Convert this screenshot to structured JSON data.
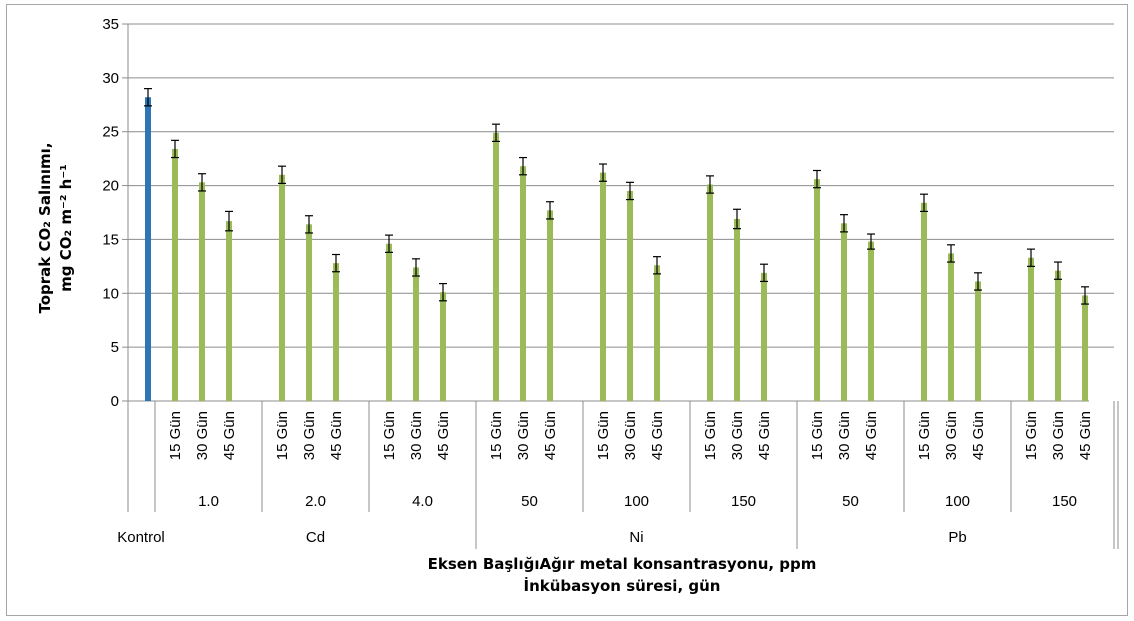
{
  "chart_data": {
    "type": "bar",
    "ylabel": {
      "line1": "Toprak CO₂ Salınımı,",
      "line2": "mg CO₂ m⁻² h⁻¹"
    },
    "xlabel": {
      "line1": "Eksen BaşlığıAğır metal konsantrasyonu, ppm",
      "line2": "İnkübasyon süresi, gün"
    },
    "ylim": [
      0,
      35
    ],
    "yticks": [
      0,
      5,
      10,
      15,
      20,
      25,
      30,
      35
    ],
    "grid": true,
    "colors": {
      "control": "#2e75b6",
      "treatment": "#9bbb59",
      "error_bar": "#000000"
    },
    "control": {
      "label": "Kontrol",
      "value": 28.2,
      "error": 0.8
    },
    "groups": [
      {
        "metal": "Cd",
        "concentrations": [
          {
            "label": "1.0",
            "bars": [
              {
                "day": "15 Gün",
                "value": 23.4,
                "error": 0.8
              },
              {
                "day": "30 Gün",
                "value": 20.3,
                "error": 0.8
              },
              {
                "day": "45 Gün",
                "value": 16.7,
                "error": 0.9
              }
            ]
          },
          {
            "label": "2.0",
            "bars": [
              {
                "day": "15 Gün",
                "value": 21.0,
                "error": 0.8
              },
              {
                "day": "30 Gün",
                "value": 16.4,
                "error": 0.8
              },
              {
                "day": "45 Gün",
                "value": 12.8,
                "error": 0.8
              }
            ]
          },
          {
            "label": "4.0",
            "bars": [
              {
                "day": "15 Gün",
                "value": 14.6,
                "error": 0.8
              },
              {
                "day": "30 Gün",
                "value": 12.4,
                "error": 0.8
              },
              {
                "day": "45 Gün",
                "value": 10.1,
                "error": 0.8
              }
            ]
          }
        ]
      },
      {
        "metal": "Ni",
        "concentrations": [
          {
            "label": "50",
            "bars": [
              {
                "day": "15 Gün",
                "value": 24.9,
                "error": 0.8
              },
              {
                "day": "30 Gün",
                "value": 21.8,
                "error": 0.8
              },
              {
                "day": "45 Gün",
                "value": 17.7,
                "error": 0.8
              }
            ]
          },
          {
            "label": "100",
            "bars": [
              {
                "day": "15 Gün",
                "value": 21.2,
                "error": 0.8
              },
              {
                "day": "30 Gün",
                "value": 19.5,
                "error": 0.8
              },
              {
                "day": "45 Gün",
                "value": 12.6,
                "error": 0.8
              }
            ]
          },
          {
            "label": "150",
            "bars": [
              {
                "day": "15 Gün",
                "value": 20.1,
                "error": 0.8
              },
              {
                "day": "30 Gün",
                "value": 16.9,
                "error": 0.9
              },
              {
                "day": "45 Gün",
                "value": 11.9,
                "error": 0.8
              }
            ]
          }
        ]
      },
      {
        "metal": "Pb",
        "concentrations": [
          {
            "label": "50",
            "bars": [
              {
                "day": "15 Gün",
                "value": 20.6,
                "error": 0.8
              },
              {
                "day": "30 Gün",
                "value": 16.5,
                "error": 0.8
              },
              {
                "day": "45 Gün",
                "value": 14.8,
                "error": 0.7
              }
            ]
          },
          {
            "label": "100",
            "bars": [
              {
                "day": "15 Gün",
                "value": 18.4,
                "error": 0.8
              },
              {
                "day": "30 Gün",
                "value": 13.7,
                "error": 0.8
              },
              {
                "day": "45 Gün",
                "value": 11.1,
                "error": 0.8
              }
            ]
          },
          {
            "label": "150",
            "bars": [
              {
                "day": "15 Gün",
                "value": 13.3,
                "error": 0.8
              },
              {
                "day": "30 Gün",
                "value": 12.1,
                "error": 0.8
              },
              {
                "day": "45 Gün",
                "value": 9.8,
                "error": 0.8
              }
            ]
          }
        ]
      }
    ]
  }
}
